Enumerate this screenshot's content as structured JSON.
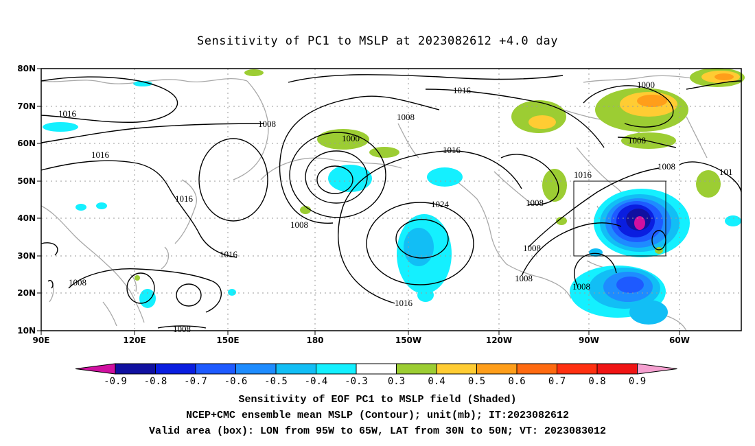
{
  "title": "Sensitivity of PC1 to MSLP at 2023082612 +4.0 day",
  "map": {
    "lon_labels": [
      "90E",
      "120E",
      "150E",
      "180",
      "150W",
      "120W",
      "90W",
      "60W"
    ],
    "lat_labels": [
      "80N",
      "70N",
      "60N",
      "50N",
      "40N",
      "30N",
      "20N",
      "10N"
    ],
    "valid_box": {
      "lon_from": "95W",
      "lon_to": "65W",
      "lat_from": "30N",
      "lat_to": "50N"
    },
    "contour_labels": [
      "1016",
      "1016",
      "1008",
      "1008",
      "1000",
      "1016",
      "1016",
      "1008",
      "1016",
      "1024",
      "1008",
      "1008",
      "1016",
      "1016",
      "1008",
      "1008",
      "1008",
      "1000",
      "1008",
      "1008",
      "1016",
      "101",
      "1008"
    ]
  },
  "colorbar": {
    "ticks": [
      "-0.9",
      "-0.8",
      "-0.7",
      "-0.6",
      "-0.5",
      "-0.4",
      "-0.3",
      "0.3",
      "0.4",
      "0.5",
      "0.6",
      "0.7",
      "0.8",
      "0.9"
    ],
    "colors": [
      "#1010a0",
      "#0a1ee0",
      "#1e5aff",
      "#1e8cff",
      "#12bef5",
      "#14f0ff",
      "#ffffff",
      "#9ccd33",
      "#ffcc33",
      "#ff9e1a",
      "#ff6a10",
      "#ff3010",
      "#f01414"
    ],
    "low_end_color": "#d010a0",
    "high_end_color": "#f5a0d0"
  },
  "captions": {
    "line1": "Sensitivity of EOF PC1 to MSLP field (Shaded)",
    "line2": "NCEP+CMC ensemble mean MSLP (Contour); unit(mb); IT:2023082612",
    "line3": "Valid area (box): LON from 95W to 65W, LAT from 30N to 50N; VT: 2023083012"
  }
}
